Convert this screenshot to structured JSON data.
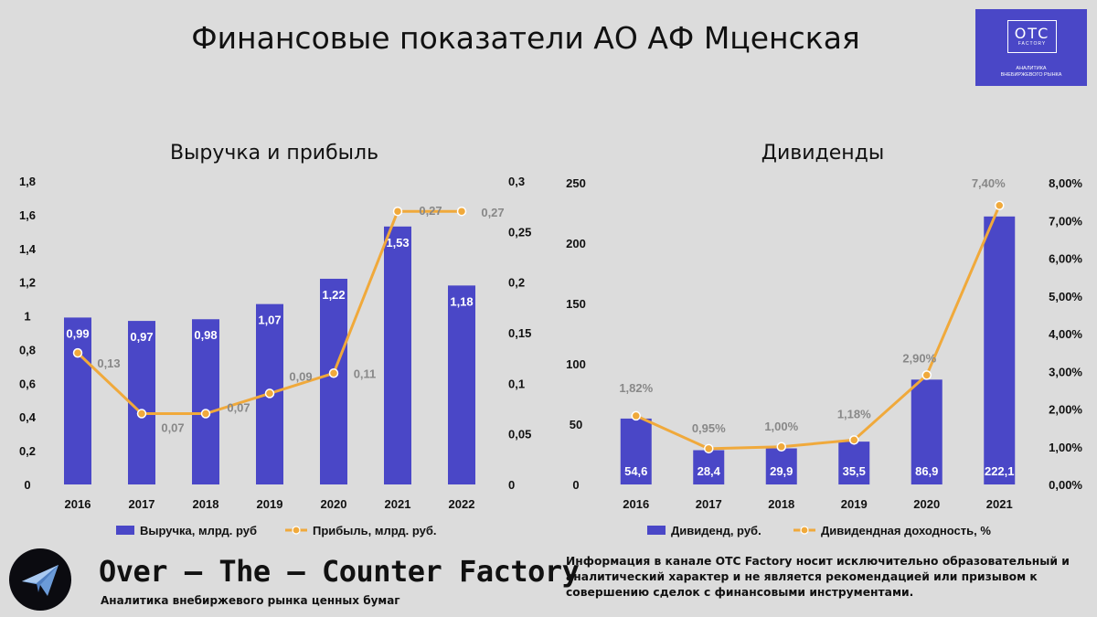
{
  "title": "Финансовые показатели АО АФ Мценская",
  "logo": {
    "otc": "OTC",
    "factory": "FACTORY",
    "line1": "Аналитика",
    "line2": "внебиржевого рынка"
  },
  "footer": {
    "brand": "Over – The – Counter Factory",
    "tagline": "Аналитика внебиржевого рынка ценных бумаг",
    "disclaimer": "Информация в канале OTC Factory носит исключительно образовательный и аналитический характер и не является рекомендацией или призывом к совершению сделок с финансовыми инструментами.",
    "icon": "paper-plane-icon"
  },
  "colors": {
    "bar": "#4a47c7",
    "line": "#f0a93b",
    "background": "#dcdcdc"
  },
  "chart_data": [
    {
      "type": "bar",
      "title": "Выручка и прибыль",
      "categories": [
        "2016",
        "2017",
        "2018",
        "2019",
        "2020",
        "2021",
        "2022"
      ],
      "series": [
        {
          "name": "Выручка, млрд. руб",
          "type": "bar",
          "axis": "left",
          "values": [
            0.99,
            0.97,
            0.98,
            1.07,
            1.22,
            1.53,
            1.18
          ],
          "labels": [
            "0,99",
            "0,97",
            "0,98",
            "1,07",
            "1,22",
            "1,53",
            "1,18"
          ]
        },
        {
          "name": "Прибыль, млрд. руб.",
          "type": "line",
          "axis": "right",
          "values": [
            0.13,
            0.07,
            0.07,
            0.09,
            0.11,
            0.27,
            0.27
          ],
          "labels": [
            "0,13",
            "0,07",
            "0,07",
            "0,09",
            "0,11",
            "0,27",
            "0,27"
          ]
        }
      ],
      "left_axis": {
        "ylim": [
          0,
          1.8
        ],
        "ticks": [
          "0",
          "0,2",
          "0,4",
          "0,6",
          "0,8",
          "1",
          "1,2",
          "1,4",
          "1,6",
          "1,8"
        ]
      },
      "right_axis": {
        "ylim": [
          0,
          0.3
        ],
        "ticks": [
          "0",
          "0,05",
          "0,1",
          "0,15",
          "0,2",
          "0,25",
          "0,3"
        ]
      },
      "grid": false,
      "legend": "bottom"
    },
    {
      "type": "bar",
      "title": "Дивиденды",
      "categories": [
        "2016",
        "2017",
        "2018",
        "2019",
        "2020",
        "2021"
      ],
      "series": [
        {
          "name": "Дивиденд, руб.",
          "type": "bar",
          "axis": "left",
          "values": [
            54.6,
            28.4,
            29.9,
            35.5,
            86.9,
            222.1
          ],
          "labels": [
            "54,6",
            "28,4",
            "29,9",
            "35,5",
            "86,9",
            "222,1"
          ]
        },
        {
          "name": "Дивидендная доходность, %",
          "type": "line",
          "axis": "right",
          "values": [
            1.82,
            0.95,
            1.0,
            1.18,
            2.9,
            7.4
          ],
          "labels": [
            "1,82%",
            "0,95%",
            "1,00%",
            "1,18%",
            "2,90%",
            "7,40%"
          ]
        }
      ],
      "left_axis": {
        "ylim": [
          0,
          250
        ],
        "ticks": [
          "0",
          "50",
          "100",
          "150",
          "200",
          "250"
        ]
      },
      "right_axis": {
        "ylim": [
          0,
          8
        ],
        "ticks": [
          "0,00%",
          "1,00%",
          "2,00%",
          "3,00%",
          "4,00%",
          "5,00%",
          "6,00%",
          "7,00%",
          "8,00%"
        ]
      },
      "grid": false,
      "legend": "bottom"
    }
  ]
}
